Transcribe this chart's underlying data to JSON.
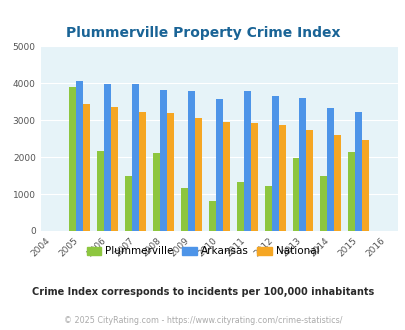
{
  "title": "Plummerville Property Crime Index",
  "years": [
    2004,
    2005,
    2006,
    2007,
    2008,
    2009,
    2010,
    2011,
    2012,
    2013,
    2014,
    2015,
    2016
  ],
  "plummerville": [
    null,
    3900,
    2175,
    1500,
    2100,
    1175,
    825,
    1325,
    1225,
    1975,
    1475,
    2125,
    null
  ],
  "arkansas": [
    null,
    4050,
    3975,
    3975,
    3825,
    3775,
    3575,
    3775,
    3650,
    3600,
    3325,
    3225,
    null
  ],
  "national": [
    null,
    3425,
    3350,
    3225,
    3200,
    3050,
    2950,
    2925,
    2875,
    2725,
    2600,
    2475,
    null
  ],
  "color_plummerville": "#8dc63f",
  "color_arkansas": "#4d94e8",
  "color_national": "#f5a623",
  "color_title": "#1a6496",
  "color_subtitle": "#2a2a2a",
  "color_copyright": "#aaaaaa",
  "color_bg": "#e6f3f8",
  "ylim": [
    0,
    5000
  ],
  "yticks": [
    0,
    1000,
    2000,
    3000,
    4000,
    5000
  ],
  "bar_width": 0.25,
  "subtitle": "Crime Index corresponds to incidents per 100,000 inhabitants",
  "copyright": "© 2025 CityRating.com - https://www.cityrating.com/crime-statistics/"
}
